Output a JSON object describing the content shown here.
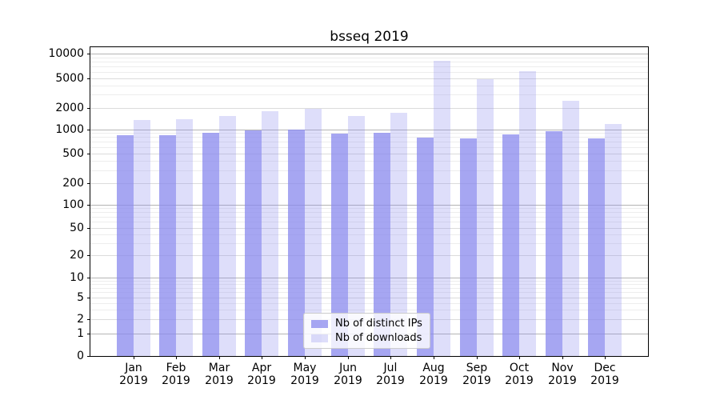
{
  "title": "bsseq 2019",
  "chart_data": {
    "type": "bar",
    "title": "bsseq 2019",
    "x_months": [
      "Jan",
      "Feb",
      "Mar",
      "Apr",
      "May",
      "Jun",
      "Jul",
      "Aug",
      "Sep",
      "Oct",
      "Nov",
      "Dec"
    ],
    "x_year": "2019",
    "categories": [
      "Jan 2019",
      "Feb 2019",
      "Mar 2019",
      "Apr 2019",
      "May 2019",
      "Jun 2019",
      "Jul 2019",
      "Aug 2019",
      "Sep 2019",
      "Oct 2019",
      "Nov 2019",
      "Dec 2019"
    ],
    "series": [
      {
        "name": "Nb of distinct IPs",
        "values": [
          840,
          845,
          900,
          960,
          1000,
          890,
          900,
          785,
          765,
          860,
          945,
          765
        ]
      },
      {
        "name": "Nb of downloads",
        "values": [
          1360,
          1400,
          1550,
          1780,
          1930,
          1550,
          1700,
          8100,
          4900,
          6050,
          2500,
          1190
        ]
      }
    ],
    "y_scale": "symlog",
    "y_ticks": [
      "0",
      "1",
      "2",
      "5",
      "10",
      "20",
      "50",
      "100",
      "200",
      "500",
      "1000",
      "2000",
      "5000",
      "10000"
    ],
    "ylim_top": 12000,
    "grid": true,
    "legend_position": "lower-center"
  },
  "colors": {
    "bar_base": "#8888ee",
    "bar_distinct_ips": "rgba(136,136,238,0.75)",
    "bar_downloads": "rgba(136,136,238,0.28)",
    "grid_major": "#b4b4b4",
    "grid_mid": "#dcdcdc",
    "grid_minor": "#ededed",
    "axis": "#000000",
    "background": "#ffffff"
  }
}
